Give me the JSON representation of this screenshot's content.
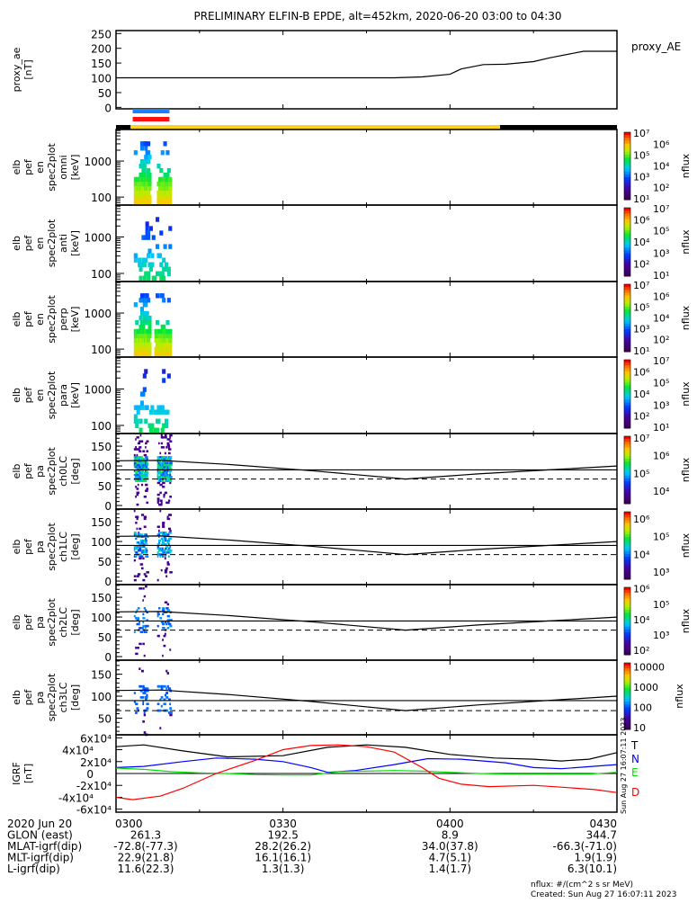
{
  "title": "PRELIMINARY ELFIN-B EPDE, alt=452km, 2020-06-20 03:00 to 04:30",
  "chart_data": {
    "type": "multi-panel time series / spectrogram",
    "x_range_minutes_after_0300": [
      0,
      90
    ],
    "x_tick_labels": [
      "0300",
      "0330",
      "0400",
      "0430"
    ],
    "proxy_ae": {
      "ylabel": "proxy_ae\n[nT]",
      "legend": "proxy_AE",
      "ylim": [
        -5,
        260
      ],
      "ticks": [
        "250",
        "200",
        "150",
        "100",
        "50",
        "0"
      ],
      "tick_values": [
        250,
        200,
        150,
        100,
        50,
        0
      ],
      "x": [
        0,
        50,
        55,
        60,
        62,
        66,
        70,
        75,
        78,
        84,
        90
      ],
      "y": [
        100,
        100,
        103,
        112,
        130,
        145,
        146,
        155,
        168,
        190,
        190
      ]
    },
    "status_bars": {
      "upper_blue_minutes": [
        3.0,
        9.6
      ],
      "upper_color": "#1a7fff",
      "lower_red_minutes": [
        3.0,
        9.6
      ],
      "lower_color": "#ff1010",
      "science_yellow_minutes": [
        2.6,
        69.0
      ],
      "yellow_color": "#ffd21e"
    },
    "energy_panels": [
      {
        "label": [
          "elb",
          "pef",
          "en",
          "spec2plot",
          "omni",
          "[keV]"
        ],
        "ticks": [
          "1000",
          "100"
        ],
        "tick_values": [
          1000,
          100
        ],
        "ylim": [
          60,
          7500
        ],
        "intensity": 1.0
      },
      {
        "label": [
          "elb",
          "pef",
          "en",
          "spec2plot",
          "anti",
          "[keV]"
        ],
        "ticks": [
          "1000",
          "100"
        ],
        "tick_values": [
          1000,
          100
        ],
        "ylim": [
          60,
          7500
        ],
        "intensity": 0.25
      },
      {
        "label": [
          "elb",
          "pef",
          "en",
          "spec2plot",
          "perp",
          "[keV]"
        ],
        "ticks": [
          "1000",
          "100"
        ],
        "tick_values": [
          1000,
          100
        ],
        "ylim": [
          60,
          7500
        ],
        "intensity": 1.0
      },
      {
        "label": [
          "elb",
          "pef",
          "en",
          "spec2plot",
          "para",
          "[keV]"
        ],
        "ticks": [
          "1000",
          "100"
        ],
        "tick_values": [
          1000,
          100
        ],
        "ylim": [
          60,
          7500
        ],
        "intensity": 0.25
      }
    ],
    "pa_panels": [
      {
        "label": [
          "elb",
          "pef",
          "pa",
          "spec2plot",
          "ch0LC",
          "[deg]"
        ],
        "ticks": [
          "150",
          "100",
          "50",
          "0"
        ],
        "tick_values": [
          150,
          100,
          50,
          0
        ],
        "ylim": [
          -9,
          182
        ],
        "intensity": 1.0
      },
      {
        "label": [
          "elb",
          "pef",
          "pa",
          "spec2plot",
          "ch1LC",
          "[deg]"
        ],
        "ticks": [
          "150",
          "100",
          "50",
          "0"
        ],
        "tick_values": [
          150,
          100,
          50,
          0
        ],
        "ylim": [
          -9,
          182
        ],
        "intensity": 0.6
      },
      {
        "label": [
          "elb",
          "pef",
          "pa",
          "spec2plot",
          "ch2LC",
          "[deg]"
        ],
        "ticks": [
          "150",
          "100",
          "50",
          "0"
        ],
        "tick_values": [
          150,
          100,
          50,
          0
        ],
        "ylim": [
          -9,
          182
        ],
        "intensity": 0.3
      },
      {
        "label": [
          "elb",
          "pef",
          "pa",
          "spec2plot",
          "ch3LC",
          "[deg]"
        ],
        "ticks": [
          "150",
          "100",
          "50"
        ],
        "tick_values": [
          150,
          100,
          50
        ],
        "ylim": [
          12,
          182
        ],
        "intensity": 0.2
      }
    ],
    "loss_cone_line": {
      "x": [
        0,
        8,
        20,
        35,
        52,
        65,
        80,
        90
      ],
      "y": [
        113,
        114,
        104,
        88,
        67,
        80,
        92,
        100
      ]
    },
    "reference_lines_deg": {
      "solid": 90,
      "dashed": 67
    },
    "colorbars": [
      {
        "label": "nflux",
        "ticks": [
          "10^7",
          "10^6",
          "10^5",
          "10^4",
          "10^3",
          "10^2",
          "10^1"
        ],
        "range_log": [
          0.9,
          7.1
        ]
      },
      {
        "label": "nflux",
        "ticks": [
          "10^7",
          "10^6",
          "10^5",
          "10^4",
          "10^3",
          "10^2",
          "10^1"
        ],
        "range_log": [
          0.9,
          7.1
        ]
      },
      {
        "label": "nflux",
        "ticks": [
          "10^7",
          "10^6",
          "10^5",
          "10^4",
          "10^3",
          "10^2",
          "10^1"
        ],
        "range_log": [
          0.9,
          7.1
        ]
      },
      {
        "label": "nflux",
        "ticks": [
          "10^7",
          "10^6",
          "10^5",
          "10^4",
          "10^3",
          "10^2",
          "10^1"
        ],
        "range_log": [
          0.9,
          7.1
        ]
      },
      {
        "label": "nflux",
        "ticks": [
          "10^7",
          "10^6",
          "10^5",
          "10^4"
        ],
        "range_log": [
          3.3,
          7.1
        ]
      },
      {
        "label": "nflux",
        "ticks": [
          "10^6",
          "10^5",
          "10^4",
          "10^3"
        ],
        "range_log": [
          2.6,
          6.4
        ]
      },
      {
        "label": "nflux",
        "ticks": [
          "10^6",
          "10^5",
          "10^4",
          "10^3",
          "10^2"
        ],
        "range_log": [
          1.7,
          6.1
        ]
      },
      {
        "label": "nflux",
        "ticks": [
          "10000",
          "1000",
          "100",
          "10"
        ],
        "range_log": [
          0.9,
          4.2
        ]
      }
    ],
    "igrf": {
      "ylabel": "IGRF\n[nT]",
      "ylim": [
        -65000,
        65000
      ],
      "ticks": [
        "6x10^4",
        "4x10^4",
        "2x10^4",
        "0",
        "-2x10^4",
        "-4x10^4",
        "-6x10^4"
      ],
      "tick_values": [
        60000,
        40000,
        20000,
        0,
        -20000,
        -40000,
        -60000
      ],
      "series": [
        {
          "name": "T",
          "color": "#000000",
          "x": [
            0,
            5,
            12,
            20,
            30,
            38,
            45,
            52,
            60,
            68,
            75,
            80,
            85,
            90
          ],
          "y": [
            45000,
            48000,
            38000,
            28000,
            30000,
            44000,
            48000,
            44000,
            32000,
            26000,
            24000,
            21000,
            24000,
            35000
          ]
        },
        {
          "name": "N",
          "color": "#0000ff",
          "x": [
            0,
            5,
            12,
            18,
            25,
            30,
            35,
            38,
            43,
            50,
            56,
            62,
            70,
            75,
            80,
            90
          ],
          "y": [
            10000,
            12000,
            20000,
            26000,
            24000,
            20000,
            10000,
            2000,
            5000,
            15000,
            25000,
            24000,
            18000,
            10000,
            8000,
            15000
          ]
        },
        {
          "name": "E",
          "color": "#00e000",
          "x": [
            0,
            5,
            10,
            15,
            20,
            25,
            30,
            35,
            40,
            45,
            50,
            55,
            60,
            65,
            70,
            75,
            80,
            85,
            90
          ],
          "y": [
            9000,
            7000,
            3000,
            1000,
            0,
            -2000,
            -2500,
            -2500,
            3000,
            4000,
            5000,
            4000,
            2000,
            0,
            -1000,
            -1000,
            -1000,
            -1000,
            2000
          ]
        },
        {
          "name": "D",
          "color": "#ff0000",
          "x": [
            0,
            3,
            8,
            12,
            18,
            25,
            30,
            35,
            40,
            45,
            50,
            55,
            58,
            62,
            67,
            75,
            80,
            86,
            90
          ],
          "y": [
            -40000,
            -44000,
            -38000,
            -25000,
            0,
            22000,
            40000,
            47000,
            48000,
            45000,
            36000,
            10000,
            -8000,
            -18000,
            -22000,
            -20000,
            -23000,
            -27000,
            -32000
          ]
        }
      ]
    }
  },
  "footer": {
    "rows": [
      {
        "label": "2020 Jun 20",
        "values": [
          "0300",
          "0330",
          "0400",
          "0430"
        ]
      },
      {
        "label": "GLON (east)",
        "values": [
          "261.3",
          "192.5",
          "8.9",
          "344.7"
        ]
      },
      {
        "label": "MLAT-igrf(dip)",
        "values": [
          "-72.8(-77.3)",
          "28.2(26.2)",
          "34.0(37.8)",
          "-66.3(-71.0)"
        ]
      },
      {
        "label": "MLT-igrf(dip)",
        "values": [
          "22.9(21.8)",
          "16.1(16.1)",
          "4.7(5.1)",
          "1.9(1.9)"
        ]
      },
      {
        "label": "L-igrf(dip)",
        "values": [
          "11.6(22.3)",
          "1.3(1.3)",
          "1.4(1.7)",
          "6.3(10.1)"
        ]
      }
    ],
    "units_note": "nflux: #/(cm^2 s sr MeV)",
    "created": "Created: Sun Aug 27 16:07:11 2023",
    "side_stamp": "Sun Aug 27 16:07:11 2023"
  }
}
